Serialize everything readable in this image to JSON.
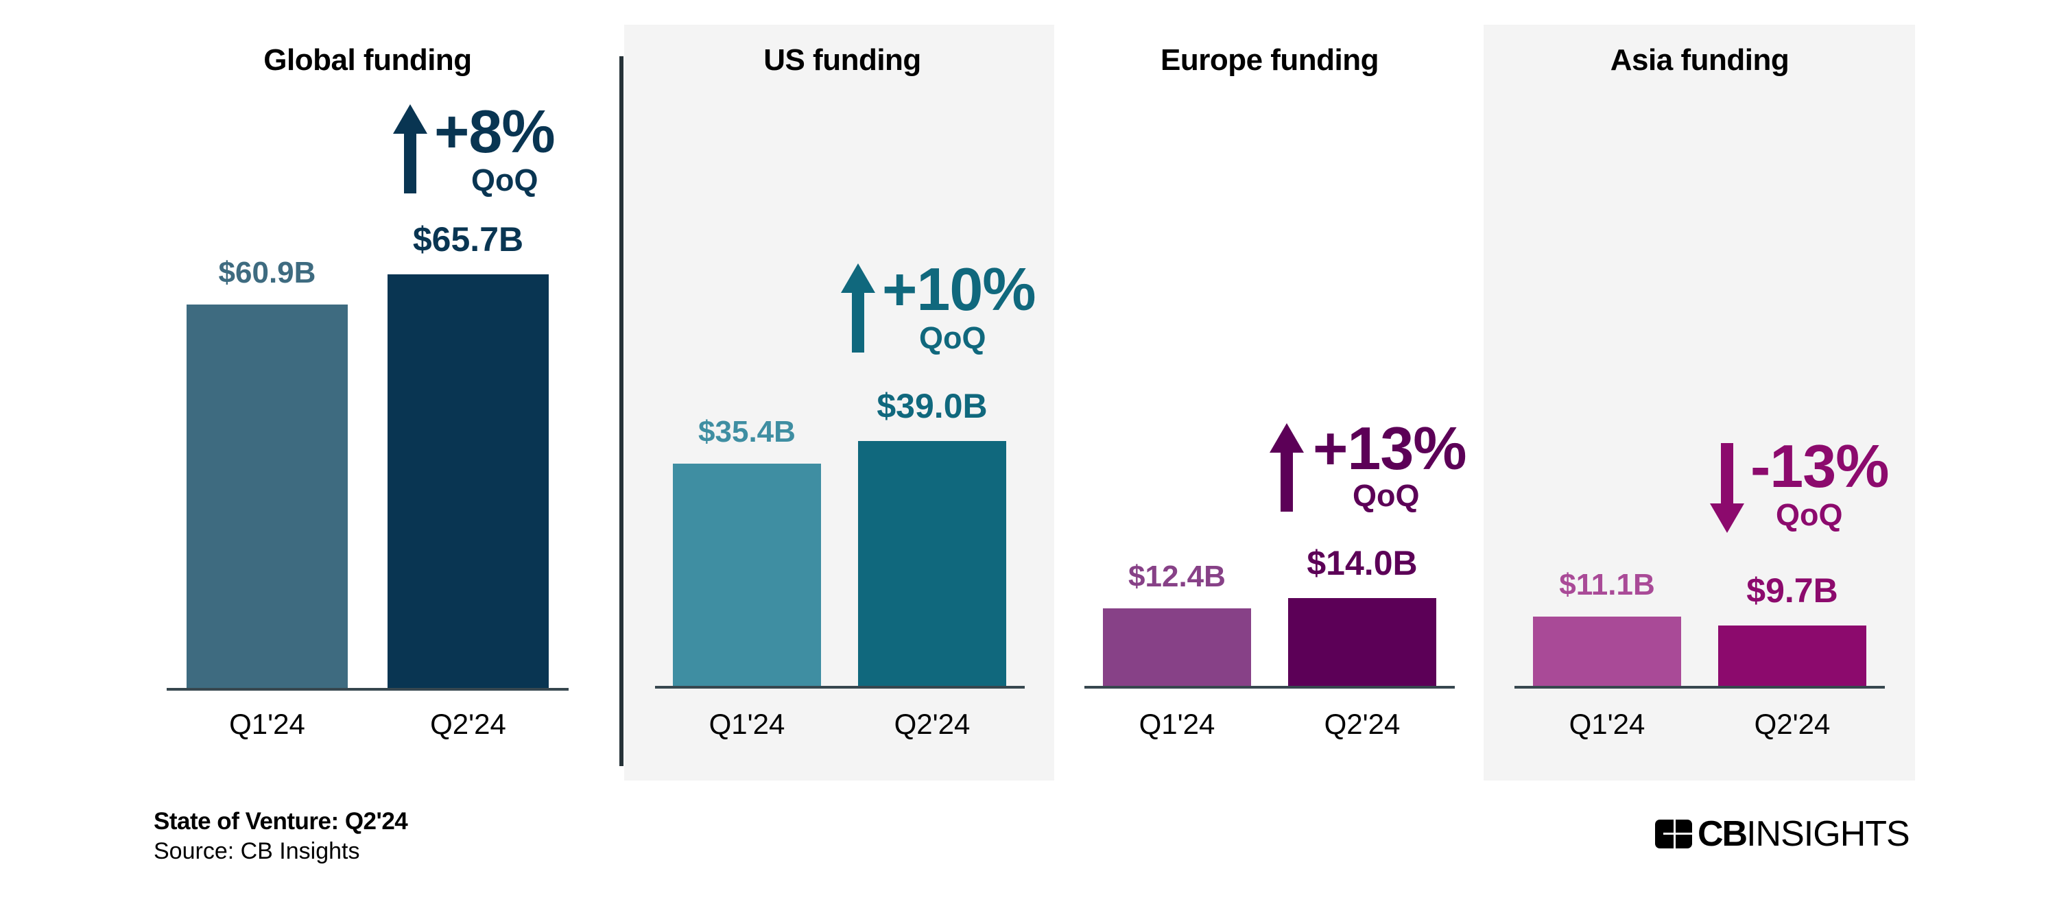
{
  "chart_data": [
    {
      "type": "bar",
      "title": "Global funding",
      "categories": [
        "Q1'24",
        "Q2'24"
      ],
      "values": [
        60.9,
        65.7
      ],
      "value_labels": [
        "$60.9B",
        "$65.7B"
      ],
      "unit": "$B",
      "change": {
        "label": "+8%",
        "sub": "QoQ",
        "direction": "up"
      },
      "colors": [
        "#3e6b80",
        "#093552"
      ],
      "background": "none"
    },
    {
      "type": "bar",
      "title": "US funding",
      "categories": [
        "Q1'24",
        "Q2'24"
      ],
      "values": [
        35.4,
        39.0
      ],
      "value_labels": [
        "$35.4B",
        "$39.0B"
      ],
      "unit": "$B",
      "change": {
        "label": "+10%",
        "sub": "QoQ",
        "direction": "up"
      },
      "colors": [
        "#3f8ea2",
        "#10687d"
      ],
      "background": "#f4f4f4"
    },
    {
      "type": "bar",
      "title": "Europe funding",
      "categories": [
        "Q1'24",
        "Q2'24"
      ],
      "values": [
        12.4,
        14.0
      ],
      "value_labels": [
        "$12.4B",
        "$14.0B"
      ],
      "unit": "$B",
      "change": {
        "label": "+13%",
        "sub": "QoQ",
        "direction": "up"
      },
      "colors": [
        "#874187",
        "#5c0057"
      ],
      "background": "none"
    },
    {
      "type": "bar",
      "title": "Asia funding",
      "categories": [
        "Q1'24",
        "Q2'24"
      ],
      "values": [
        11.1,
        9.7
      ],
      "value_labels": [
        "$11.1B",
        "$9.7B"
      ],
      "unit": "$B",
      "change": {
        "label": "-13%",
        "sub": "QoQ",
        "direction": "down"
      },
      "colors": [
        "#a94a97",
        "#8c0a6d"
      ],
      "background": "#f4f4f4"
    }
  ],
  "footer": {
    "title": "State of Venture: Q2'24",
    "source": "Source: CB Insights"
  },
  "logo": {
    "bold": "CB",
    "regular": "INSIGHTS"
  }
}
